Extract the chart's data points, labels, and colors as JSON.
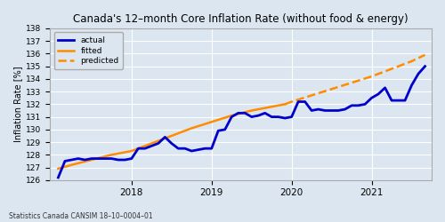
{
  "title": "Canada's 12–month Core Inflation Rate (without food & energy)",
  "ylabel": "Inflation Rate [%]",
  "source": "Statistics Canada CANSIM 18–10–0004–01",
  "ylim": [
    126,
    138
  ],
  "yticks": [
    126,
    127,
    128,
    129,
    130,
    131,
    132,
    133,
    134,
    135,
    136,
    137,
    138
  ],
  "bg_color": "#dce6f1",
  "actual_color": "#0000cc",
  "fitted_color": "#ff8c00",
  "predicted_color": "#ff8c00",
  "actual_lw": 2.0,
  "fitted_lw": 1.8,
  "predicted_lw": 1.8,
  "actual_x": [
    2017.083,
    2017.167,
    2017.25,
    2017.333,
    2017.417,
    2017.5,
    2017.583,
    2017.667,
    2017.75,
    2017.833,
    2017.917,
    2018.0,
    2018.083,
    2018.167,
    2018.25,
    2018.333,
    2018.417,
    2018.5,
    2018.583,
    2018.667,
    2018.75,
    2018.833,
    2018.917,
    2019.0,
    2019.083,
    2019.167,
    2019.25,
    2019.333,
    2019.417,
    2019.5,
    2019.583,
    2019.667,
    2019.75,
    2019.833,
    2019.917,
    2020.0,
    2020.083,
    2020.167,
    2020.25,
    2020.333,
    2020.417,
    2020.5,
    2020.583,
    2020.667,
    2020.75,
    2020.833,
    2020.917,
    2021.0,
    2021.083,
    2021.167,
    2021.25,
    2021.333,
    2021.417,
    2021.5,
    2021.583,
    2021.667
  ],
  "actual_y": [
    126.2,
    127.5,
    127.6,
    127.7,
    127.6,
    127.7,
    127.7,
    127.7,
    127.7,
    127.6,
    127.6,
    127.7,
    128.5,
    128.5,
    128.7,
    128.9,
    129.4,
    128.9,
    128.5,
    128.5,
    128.3,
    128.4,
    128.5,
    128.5,
    129.9,
    130.0,
    131.0,
    131.3,
    131.3,
    131.0,
    131.1,
    131.3,
    131.0,
    131.0,
    130.9,
    131.0,
    132.2,
    132.2,
    131.5,
    131.6,
    131.5,
    131.5,
    131.5,
    131.6,
    131.9,
    131.9,
    132.0,
    132.5,
    132.8,
    133.3,
    132.3,
    132.3,
    132.3,
    133.5,
    134.4,
    135.0
  ],
  "fitted_x": [
    2017.083,
    2017.25,
    2017.5,
    2017.75,
    2018.0,
    2018.25,
    2018.5,
    2018.75,
    2019.0,
    2019.25,
    2019.5,
    2019.75,
    2019.917
  ],
  "fitted_y": [
    126.9,
    127.2,
    127.6,
    128.0,
    128.3,
    128.9,
    129.5,
    130.1,
    130.6,
    131.1,
    131.5,
    131.8,
    132.0
  ],
  "predicted_x": [
    2019.917,
    2020.0,
    2020.25,
    2020.5,
    2020.75,
    2021.0,
    2021.25,
    2021.5,
    2021.667
  ],
  "predicted_y": [
    132.0,
    132.2,
    132.7,
    133.2,
    133.7,
    134.2,
    134.8,
    135.4,
    135.9
  ],
  "xtick_positions": [
    2018.0,
    2019.0,
    2020.0,
    2021.0
  ],
  "xtick_labels": [
    "2018",
    "2019",
    "2020",
    "2021"
  ],
  "xmin": 2016.98,
  "xmax": 2021.75
}
